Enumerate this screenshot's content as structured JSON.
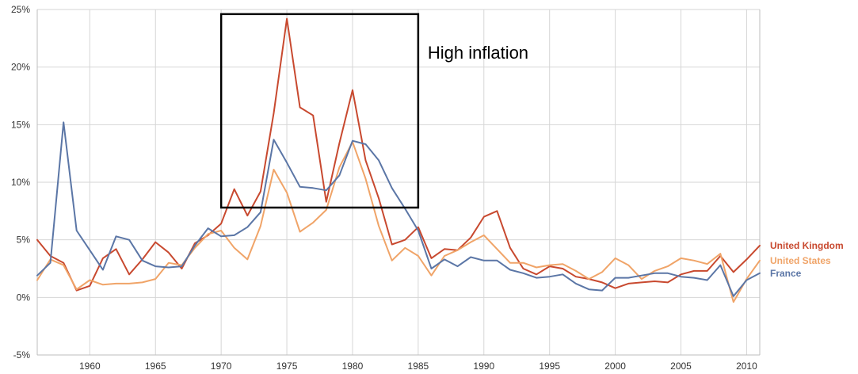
{
  "chart_data": {
    "type": "line",
    "title": "",
    "xlabel": "",
    "ylabel": "",
    "xlim": [
      1956,
      2011
    ],
    "ylim": [
      -5,
      25
    ],
    "x_ticks": [
      1960,
      1965,
      1970,
      1975,
      1980,
      1985,
      1990,
      1995,
      2000,
      2005,
      2010
    ],
    "y_ticks": [
      -5,
      0,
      5,
      10,
      15,
      20,
      25
    ],
    "y_tick_labels": [
      "-5%",
      "0%",
      "5%",
      "10%",
      "15%",
      "20%",
      "25%"
    ],
    "grid": true,
    "legend_position": "right",
    "x": [
      1956,
      1957,
      1958,
      1959,
      1960,
      1961,
      1962,
      1963,
      1964,
      1965,
      1966,
      1967,
      1968,
      1969,
      1970,
      1971,
      1972,
      1973,
      1974,
      1975,
      1976,
      1977,
      1978,
      1979,
      1980,
      1981,
      1982,
      1983,
      1984,
      1985,
      1986,
      1987,
      1988,
      1989,
      1990,
      1991,
      1992,
      1993,
      1994,
      1995,
      1996,
      1997,
      1998,
      1999,
      2000,
      2001,
      2002,
      2003,
      2004,
      2005,
      2006,
      2007,
      2008,
      2009,
      2010,
      2011
    ],
    "series": [
      {
        "name": "United Kingdom",
        "color": "#c8492f",
        "values": [
          5.0,
          3.6,
          3.0,
          0.6,
          1.0,
          3.4,
          4.2,
          2.0,
          3.3,
          4.8,
          3.9,
          2.5,
          4.7,
          5.4,
          6.4,
          9.4,
          7.1,
          9.2,
          16.0,
          24.2,
          16.5,
          15.8,
          8.3,
          13.4,
          18.0,
          11.9,
          8.6,
          4.6,
          5.0,
          6.1,
          3.4,
          4.2,
          4.1,
          5.2,
          7.0,
          7.5,
          4.3,
          2.5,
          2.0,
          2.7,
          2.5,
          1.8,
          1.6,
          1.3,
          0.8,
          1.2,
          1.3,
          1.4,
          1.3,
          2.0,
          2.3,
          2.3,
          3.6,
          2.2,
          3.3,
          4.5
        ]
      },
      {
        "name": "United States",
        "color": "#f0a468",
        "values": [
          1.5,
          3.3,
          2.8,
          0.7,
          1.5,
          1.1,
          1.2,
          1.2,
          1.3,
          1.6,
          3.0,
          2.8,
          4.3,
          5.5,
          5.8,
          4.3,
          3.3,
          6.2,
          11.1,
          9.1,
          5.7,
          6.5,
          7.6,
          11.3,
          13.5,
          10.3,
          6.2,
          3.2,
          4.3,
          3.6,
          1.9,
          3.6,
          4.1,
          4.8,
          5.4,
          4.2,
          3.0,
          3.0,
          2.6,
          2.8,
          2.9,
          2.3,
          1.6,
          2.2,
          3.4,
          2.8,
          1.6,
          2.3,
          2.7,
          3.4,
          3.2,
          2.9,
          3.8,
          -0.4,
          1.6,
          3.2
        ]
      },
      {
        "name": "France",
        "color": "#5b76a6",
        "values": [
          1.9,
          3.0,
          15.2,
          5.8,
          4.1,
          2.4,
          5.3,
          5.0,
          3.2,
          2.7,
          2.6,
          2.7,
          4.5,
          6.0,
          5.3,
          5.4,
          6.1,
          7.4,
          13.7,
          11.7,
          9.6,
          9.5,
          9.3,
          10.6,
          13.6,
          13.3,
          11.9,
          9.5,
          7.7,
          5.8,
          2.5,
          3.3,
          2.7,
          3.5,
          3.2,
          3.2,
          2.4,
          2.1,
          1.7,
          1.8,
          2.0,
          1.2,
          0.7,
          0.6,
          1.7,
          1.7,
          1.9,
          2.1,
          2.1,
          1.8,
          1.7,
          1.5,
          2.8,
          0.1,
          1.5,
          2.1
        ]
      }
    ],
    "annotations": [
      {
        "text": "High inflation",
        "x_range": [
          1970,
          1985
        ],
        "y_range": [
          7.8,
          24.6
        ]
      }
    ]
  }
}
